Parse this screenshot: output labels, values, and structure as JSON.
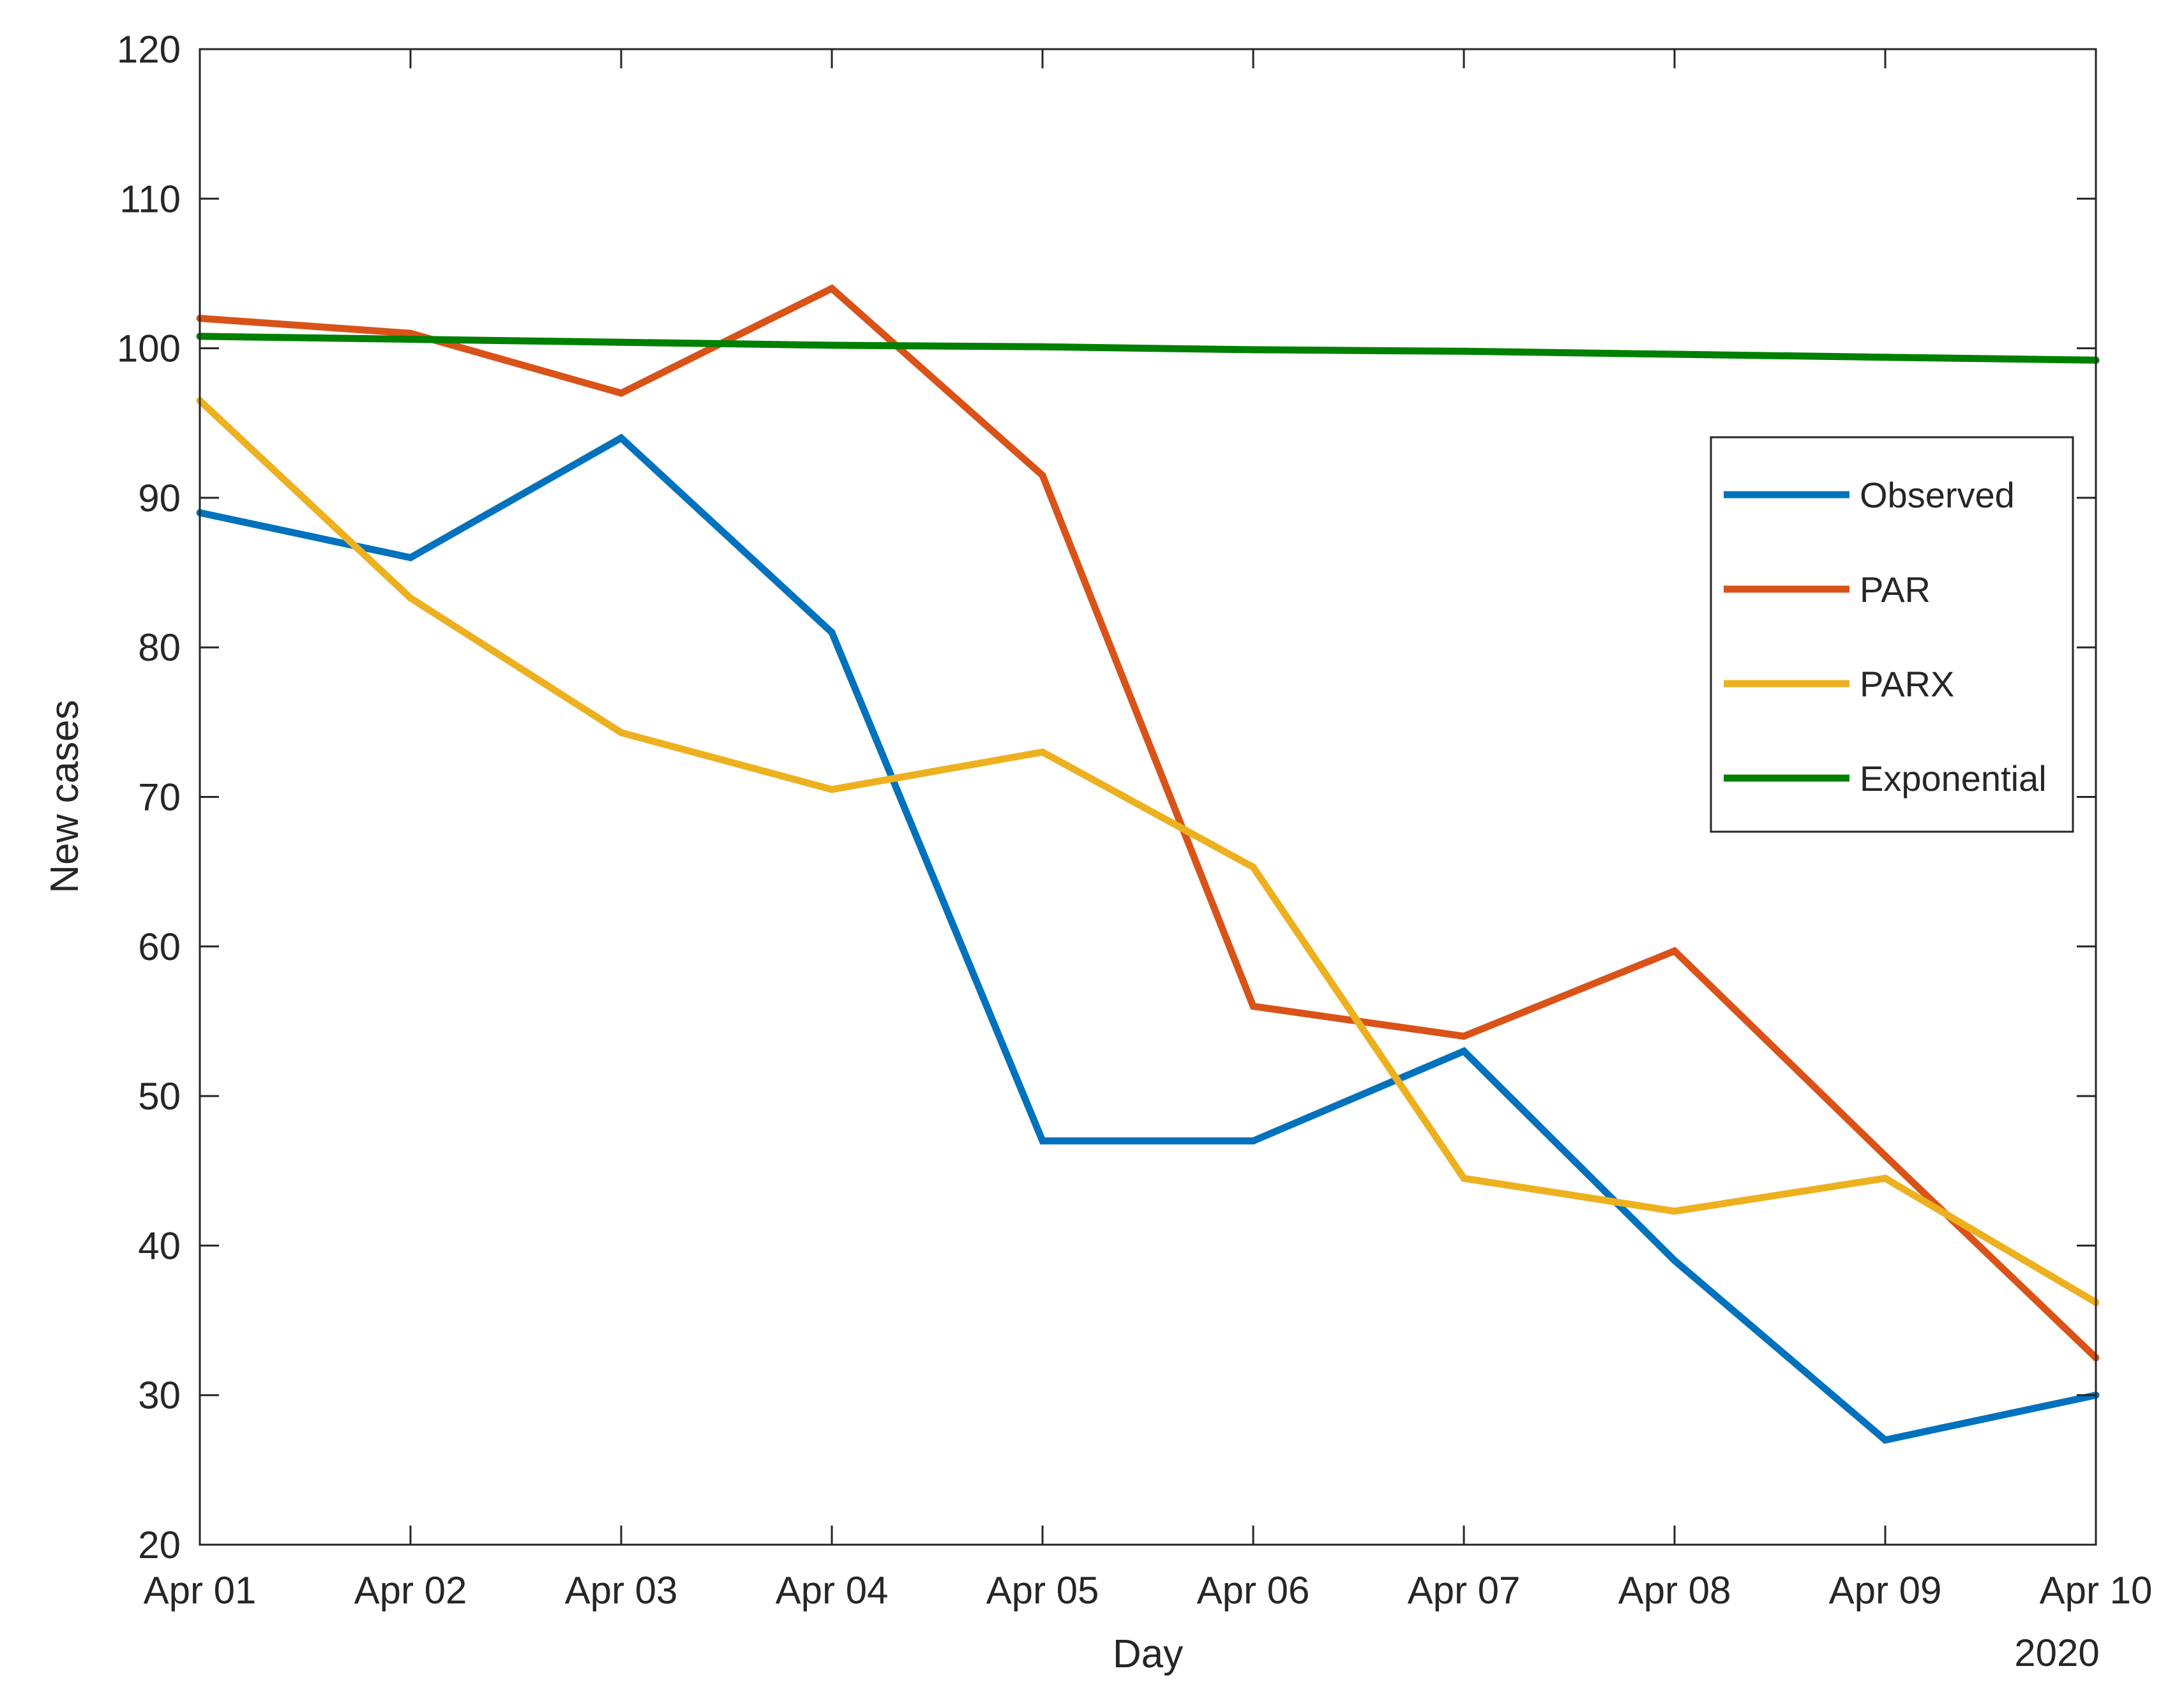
{
  "chart_data": {
    "type": "line",
    "xlabel": "Day",
    "ylabel": "New cases",
    "x_secondary_label": "2020",
    "x": [
      "Apr 01",
      "Apr 02",
      "Apr 03",
      "Apr 04",
      "Apr 05",
      "Apr 06",
      "Apr 07",
      "Apr 08",
      "Apr 09",
      "Apr 10"
    ],
    "ylim": [
      20,
      120
    ],
    "yticks": [
      20,
      30,
      40,
      50,
      60,
      70,
      80,
      90,
      100,
      110,
      120
    ],
    "grid": false,
    "legend_position": "right",
    "series": [
      {
        "name": "Observed",
        "color": "#0072BD",
        "values": [
          89,
          86,
          94,
          81,
          47,
          47,
          53,
          39,
          27,
          30
        ]
      },
      {
        "name": "PAR",
        "color": "#D95319",
        "values": [
          102,
          101,
          97,
          104,
          91.5,
          56,
          54,
          59.7,
          46,
          32.5
        ]
      },
      {
        "name": "PARX",
        "color": "#EDB120",
        "values": [
          96.5,
          83.3,
          74.3,
          70.5,
          73,
          65.3,
          44.5,
          42.3,
          44.5,
          36.2
        ]
      },
      {
        "name": "Exponential",
        "color": "#008000",
        "values": [
          100.8,
          100.6,
          100.4,
          100.2,
          100.1,
          99.9,
          99.8,
          99.6,
          99.4,
          99.2
        ]
      }
    ]
  }
}
